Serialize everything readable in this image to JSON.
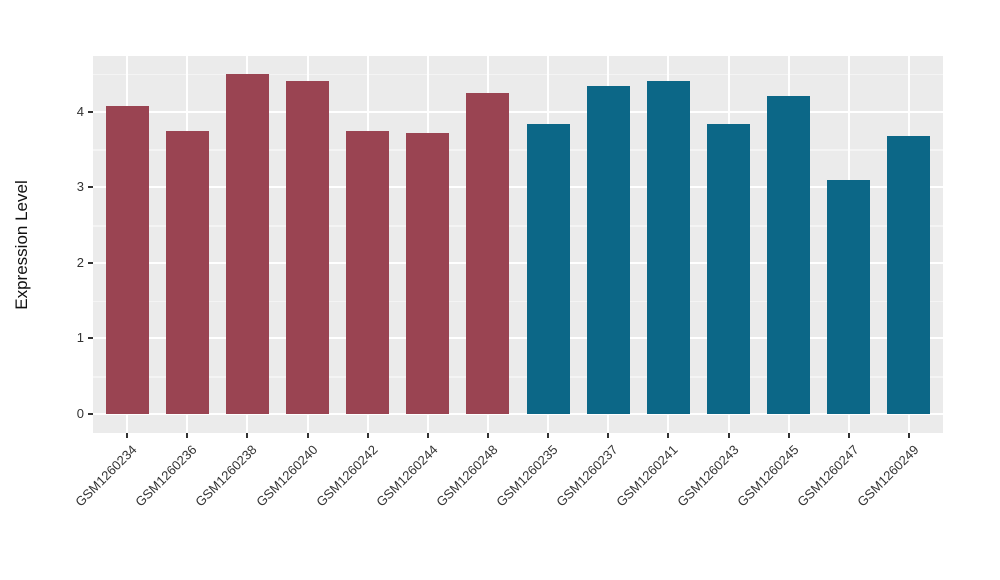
{
  "chart_data": {
    "type": "bar",
    "title": "",
    "ylabel": "Expression Level",
    "xlabel": "",
    "categories": [
      "GSM1260234",
      "GSM1260236",
      "GSM1260238",
      "GSM1260240",
      "GSM1260242",
      "GSM1260244",
      "GSM1260248",
      "GSM1260235",
      "GSM1260237",
      "GSM1260241",
      "GSM1260243",
      "GSM1260245",
      "GSM1260247",
      "GSM1260249"
    ],
    "values": [
      4.08,
      3.75,
      4.5,
      4.41,
      3.75,
      3.72,
      4.25,
      3.83,
      4.34,
      4.41,
      3.84,
      4.2,
      3.1,
      3.68
    ],
    "bar_groups": [
      "series1",
      "series1",
      "series1",
      "series1",
      "series1",
      "series1",
      "series1",
      "series2",
      "series2",
      "series2",
      "series2",
      "series2",
      "series2",
      "series2"
    ],
    "group_colors": {
      "series1": "#9a4452",
      "series2": "#0c6787"
    },
    "ylim": [
      -0.25,
      4.74
    ],
    "yticks": [
      0,
      1,
      2,
      3,
      4
    ],
    "yminorticks": [
      0.5,
      1.5,
      2.5,
      3.5,
      4.5
    ],
    "legend_position": "none",
    "grid": "on",
    "panel_bg": "#ebebeb",
    "grid_major_color": "#ffffff",
    "grid_minor_color": "#f4f4f4",
    "axis_text_color": "#333333"
  }
}
